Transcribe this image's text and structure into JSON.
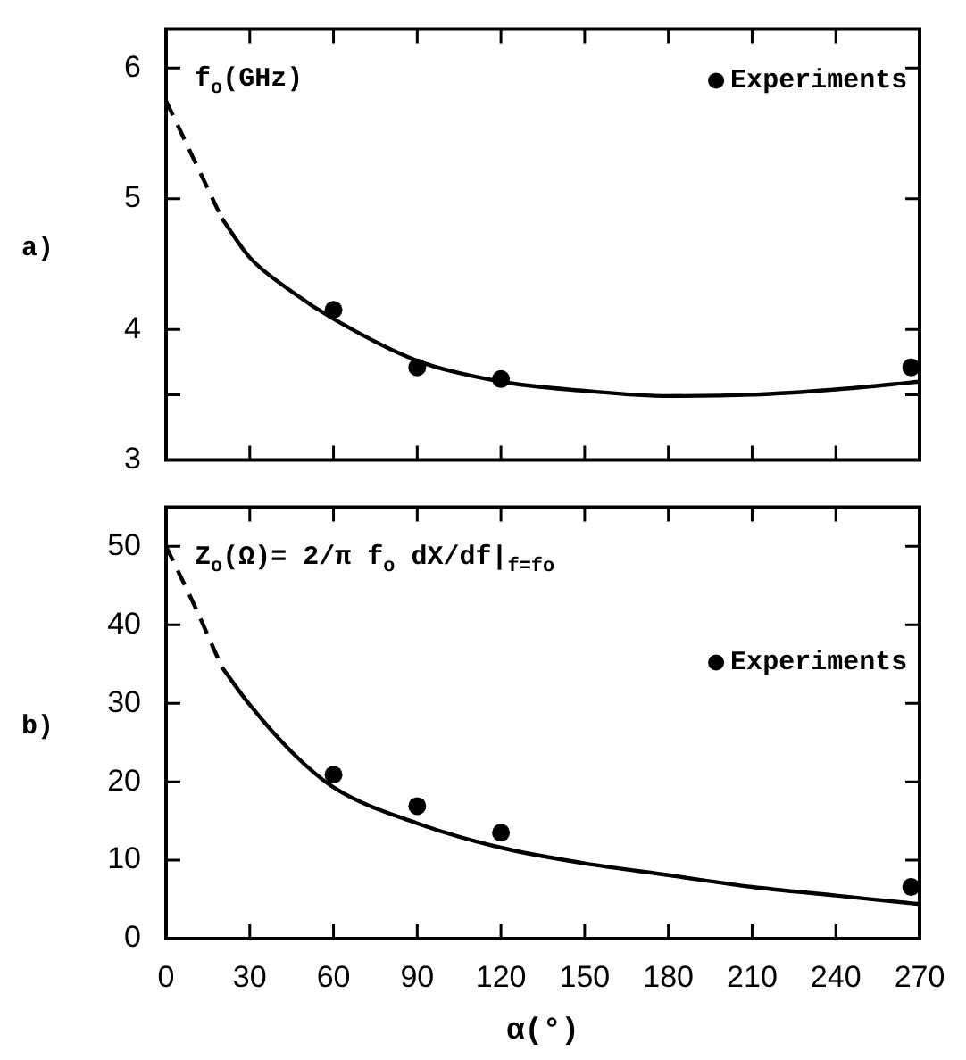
{
  "chart_data": [
    {
      "type": "line",
      "annotations": [
        "a)",
        "f$_{o}$(GHz)"
      ],
      "xlim": [
        0,
        270
      ],
      "xticks": [
        0,
        30,
        60,
        90,
        120,
        150,
        180,
        210,
        240,
        270
      ],
      "ylim": [
        3,
        6.3
      ],
      "yticks": [
        3,
        {
          "value": 3.5,
          "label": null
        },
        4,
        5,
        6
      ],
      "tick_labels": "y",
      "legend": "top right",
      "series": [
        {
          "line_style": "dashed",
          "marker": "none",
          "color": "#000000",
          "x": [
            0,
            10,
            20
          ],
          "values": [
            5.75,
            5.3,
            4.85
          ]
        },
        {
          "line_style": "solid",
          "marker": "none",
          "color": "#000000",
          "x": [
            20,
            30,
            45,
            60,
            90,
            120,
            150,
            180,
            210,
            240,
            270
          ],
          "values": [
            4.85,
            4.55,
            4.29,
            4.08,
            3.76,
            3.6,
            3.53,
            3.49,
            3.5,
            3.54,
            3.6
          ]
        },
        {
          "type": "scatter",
          "name": "Experiments",
          "marker": "circle",
          "color": "#000000",
          "x": [
            60,
            90,
            120,
            267
          ],
          "values": [
            4.15,
            3.71,
            3.62,
            3.71
          ]
        }
      ]
    },
    {
      "type": "line",
      "annotations": [
        "b)",
        "Z$_{o}$(Ω)= 2/π f$_{o}$ dX/df|$_{f=fo}$"
      ],
      "xlabel": "α(°)",
      "xlim": [
        0,
        270
      ],
      "xticks": [
        0,
        30,
        60,
        90,
        120,
        150,
        180,
        210,
        240,
        270
      ],
      "ylim": [
        0,
        55
      ],
      "yticks": [
        0,
        10,
        20,
        30,
        40,
        50
      ],
      "legend": "right",
      "series": [
        {
          "line_style": "dashed",
          "marker": "none",
          "color": "#000000",
          "x": [
            0,
            10,
            20
          ],
          "values": [
            50,
            42.6,
            34.6
          ]
        },
        {
          "line_style": "solid",
          "marker": "none",
          "color": "#000000",
          "x": [
            20,
            30,
            45,
            60,
            90,
            120,
            150,
            180,
            210,
            240,
            270
          ],
          "values": [
            34.6,
            29.8,
            23.8,
            19.3,
            14.7,
            11.6,
            9.6,
            8.1,
            6.6,
            5.5,
            4.4
          ]
        },
        {
          "type": "scatter",
          "name": "Experiments",
          "marker": "circle",
          "color": "#000000",
          "x": [
            60,
            90,
            120,
            267
          ],
          "values": [
            20.9,
            16.9,
            13.5,
            6.6
          ]
        }
      ]
    }
  ]
}
